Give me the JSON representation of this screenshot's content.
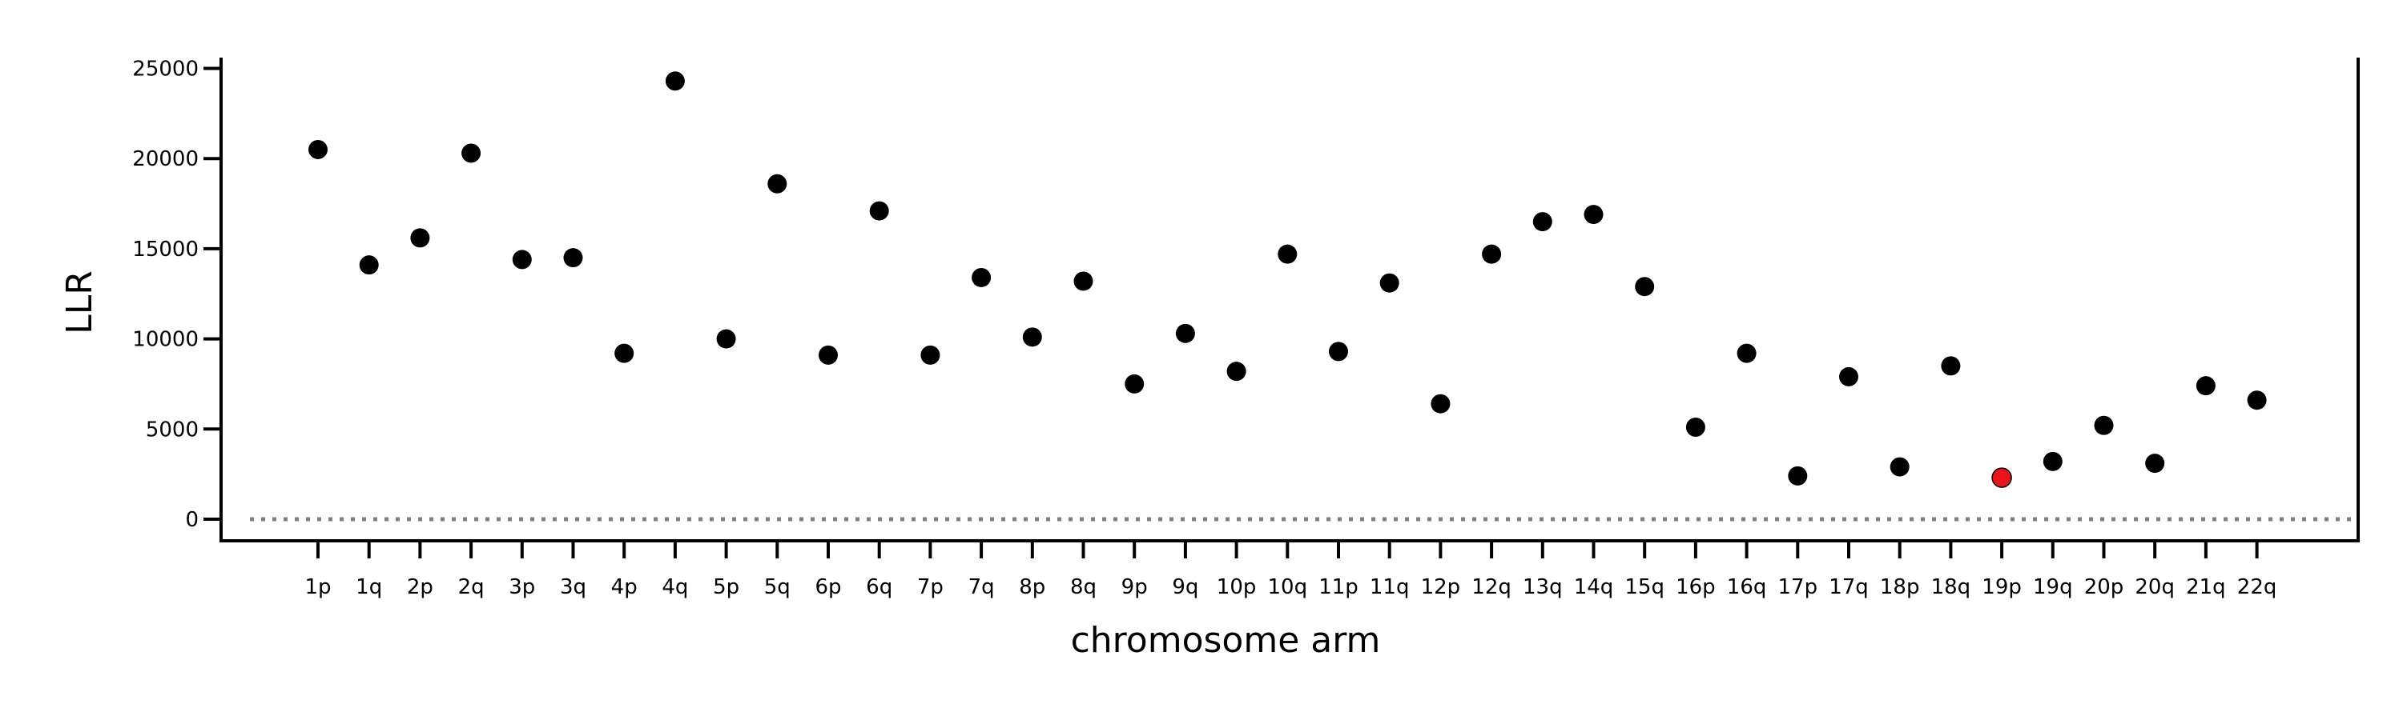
{
  "chart_data": {
    "type": "scatter",
    "xlabel": "chromosome arm",
    "ylabel": "LLR",
    "categories": [
      "1p",
      "1q",
      "2p",
      "2q",
      "3p",
      "3q",
      "4p",
      "4q",
      "5p",
      "5q",
      "6p",
      "6q",
      "7p",
      "7q",
      "8p",
      "8q",
      "9p",
      "9q",
      "10p",
      "10q",
      "11p",
      "11q",
      "12p",
      "12q",
      "13q",
      "14q",
      "15q",
      "16p",
      "16q",
      "17p",
      "17q",
      "18p",
      "18q",
      "19p",
      "19q",
      "20p",
      "20q",
      "21q",
      "22q"
    ],
    "values": [
      20500,
      14100,
      15600,
      20300,
      14400,
      14500,
      9200,
      24300,
      10000,
      18600,
      9100,
      17100,
      9100,
      13400,
      10100,
      13200,
      7500,
      10300,
      8200,
      14700,
      9300,
      13100,
      6400,
      14700,
      16500,
      16900,
      12900,
      5100,
      9200,
      2400,
      7900,
      2900,
      8500,
      2300,
      3200,
      5200,
      3100,
      7400,
      6600
    ],
    "highlight": {
      "category": "19p",
      "color": "#e8141b"
    },
    "point_color": "#000000",
    "ylim": [
      -1200,
      25600
    ],
    "yticks": [
      0,
      5000,
      10000,
      15000,
      20000,
      25000
    ],
    "reference_line": {
      "y": 0,
      "style": "dotted",
      "color": "#808080"
    },
    "grid": false
  }
}
